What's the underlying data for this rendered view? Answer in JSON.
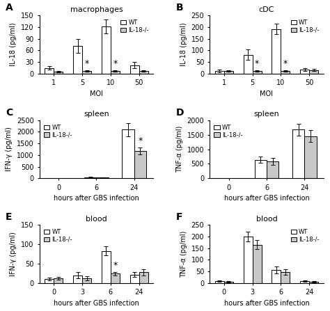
{
  "chart_data": [
    {
      "type": "bar",
      "panel_label": "A",
      "title": "macrophages",
      "xlabel": "MOI",
      "ylabel": "IL-18 (pg/ml)",
      "categories": [
        "1",
        "5",
        "10",
        "50"
      ],
      "series": [
        {
          "name": "WT",
          "color": "#ffffff",
          "values": [
            15,
            72,
            122,
            22
          ],
          "errors": [
            5,
            18,
            18,
            8
          ]
        },
        {
          "name": "IL-18-/-",
          "color": "#c8c8c8",
          "values": [
            5,
            7,
            7,
            7
          ],
          "errors": [
            2,
            2,
            2,
            2
          ]
        }
      ],
      "ylim": [
        0,
        150
      ],
      "yticks": [
        0,
        30,
        60,
        90,
        120,
        150
      ],
      "legend": "upper right",
      "annotations": [
        {
          "text": "*",
          "series": "IL-18-/-",
          "category": "5"
        },
        {
          "text": "*",
          "series": "IL-18-/-",
          "category": "10"
        }
      ]
    },
    {
      "type": "bar",
      "panel_label": "B",
      "title": "cDC",
      "xlabel": "MOI",
      "ylabel": "IL-18 (pg/ml)",
      "categories": [
        "1",
        "5",
        "10",
        "50"
      ],
      "series": [
        {
          "name": "WT",
          "color": "#ffffff",
          "values": [
            12,
            82,
            192,
            18
          ],
          "errors": [
            5,
            22,
            22,
            6
          ]
        },
        {
          "name": "IL-18-/-",
          "color": "#c8c8c8",
          "values": [
            12,
            12,
            12,
            16
          ],
          "errors": [
            3,
            4,
            4,
            4
          ]
        }
      ],
      "ylim": [
        0,
        250
      ],
      "yticks": [
        0,
        50,
        100,
        150,
        200,
        250
      ],
      "legend": "upper right",
      "annotations": [
        {
          "text": "*",
          "series": "IL-18-/-",
          "category": "5"
        },
        {
          "text": "*",
          "series": "IL-18-/-",
          "category": "10"
        }
      ]
    },
    {
      "type": "bar",
      "panel_label": "C",
      "title": "spleen",
      "xlabel": "hours after GBS infection",
      "ylabel": "IFN-γ (pg/ml)",
      "categories": [
        "0",
        "6",
        "24"
      ],
      "series": [
        {
          "name": "WT",
          "color": "#ffffff",
          "values": [
            10,
            45,
            2100
          ],
          "errors": [
            4,
            15,
            280
          ]
        },
        {
          "name": "IL-18-/-",
          "color": "#c8c8c8",
          "values": [
            8,
            40,
            1180
          ],
          "errors": [
            3,
            12,
            150
          ]
        }
      ],
      "ylim": [
        0,
        2500
      ],
      "yticks": [
        0,
        500,
        1000,
        1500,
        2000,
        2500
      ],
      "legend": "upper left",
      "annotations": [
        {
          "text": "*",
          "series": "IL-18-/-",
          "category": "24"
        }
      ]
    },
    {
      "type": "bar",
      "panel_label": "D",
      "title": "spleen",
      "xlabel": "hours after GBS infection",
      "ylabel": "TNF-α (pg/ml)",
      "categories": [
        "0",
        "6",
        "24"
      ],
      "series": [
        {
          "name": "WT",
          "color": "#ffffff",
          "values": [
            10,
            640,
            1680
          ],
          "errors": [
            4,
            100,
            200
          ]
        },
        {
          "name": "IL-18-/-",
          "color": "#c8c8c8",
          "values": [
            8,
            575,
            1450
          ],
          "errors": [
            3,
            120,
            200
          ]
        }
      ],
      "ylim": [
        0,
        2000
      ],
      "yticks": [
        0,
        500,
        1000,
        1500,
        2000
      ],
      "legend": "upper left",
      "annotations": []
    },
    {
      "type": "bar",
      "panel_label": "E",
      "title": "blood",
      "xlabel": "hours after GBS infection",
      "ylabel": "IFN-γ (pg/ml)",
      "categories": [
        "0",
        "3",
        "6",
        "24"
      ],
      "series": [
        {
          "name": "WT",
          "color": "#ffffff",
          "values": [
            10,
            20,
            83,
            22
          ],
          "errors": [
            4,
            8,
            12,
            6
          ]
        },
        {
          "name": "IL-18-/-",
          "color": "#c8c8c8",
          "values": [
            12,
            12,
            24,
            28
          ],
          "errors": [
            4,
            5,
            5,
            8
          ]
        }
      ],
      "ylim": [
        0,
        150
      ],
      "yticks": [
        0,
        50,
        100,
        150
      ],
      "legend": "upper left",
      "annotations": [
        {
          "text": "*",
          "series": "IL-18-/-",
          "category": "6"
        }
      ]
    },
    {
      "type": "bar",
      "panel_label": "F",
      "title": "blood",
      "xlabel": "hours after GBS infection",
      "ylabel": "TNF-α (pg/ml)",
      "categories": [
        "0",
        "3",
        "6",
        "24"
      ],
      "series": [
        {
          "name": "WT",
          "color": "#ffffff",
          "values": [
            8,
            200,
            55,
            8
          ],
          "errors": [
            3,
            22,
            15,
            3
          ]
        },
        {
          "name": "IL-18-/-",
          "color": "#c8c8c8",
          "values": [
            5,
            165,
            48,
            5
          ],
          "errors": [
            2,
            20,
            12,
            2
          ]
        }
      ],
      "ylim": [
        0,
        250
      ],
      "yticks": [
        0,
        50,
        100,
        150,
        200,
        250
      ],
      "legend": "upper right",
      "annotations": []
    }
  ]
}
